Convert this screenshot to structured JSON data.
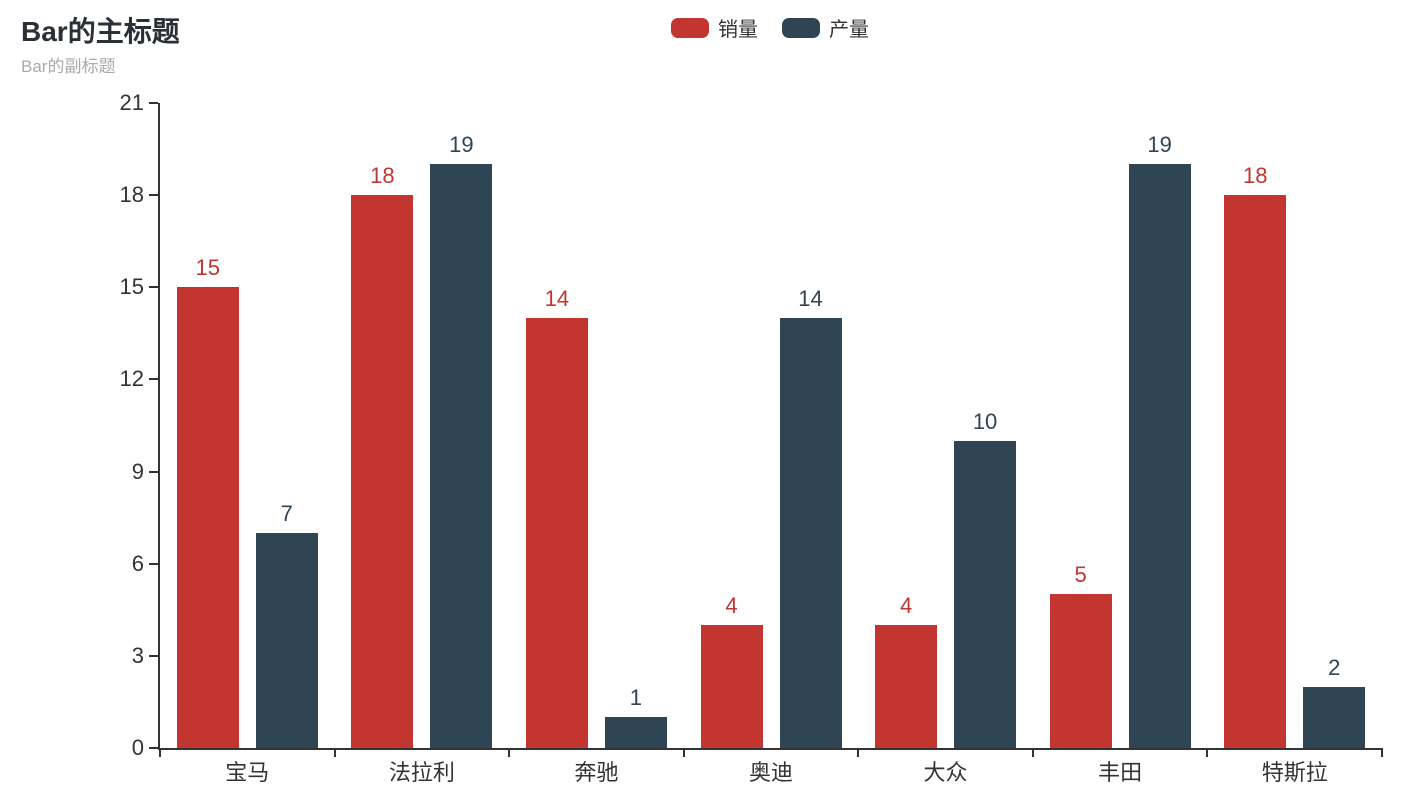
{
  "chart_data": {
    "type": "bar",
    "title": "Bar的主标题",
    "subtitle": "Bar的副标题",
    "categories": [
      "宝马",
      "法拉利",
      "奔驰",
      "奥迪",
      "大众",
      "丰田",
      "特斯拉"
    ],
    "series": [
      {
        "name": "销量",
        "color": "#c23531",
        "values": [
          15,
          18,
          14,
          4,
          4,
          5,
          18
        ]
      },
      {
        "name": "产量",
        "color": "#2f4554",
        "values": [
          7,
          19,
          1,
          14,
          10,
          19,
          2
        ]
      }
    ],
    "xlabel": "",
    "ylabel": "",
    "ylim": [
      0,
      21
    ],
    "yticks": [
      0,
      3,
      6,
      9,
      12,
      15,
      18,
      21
    ],
    "grid": false,
    "value_labels_shown": true,
    "legend_position": "top-center",
    "axis_color": "#333333",
    "title_color": "#2b2f36",
    "subtitle_color": "#aaaaaa"
  }
}
